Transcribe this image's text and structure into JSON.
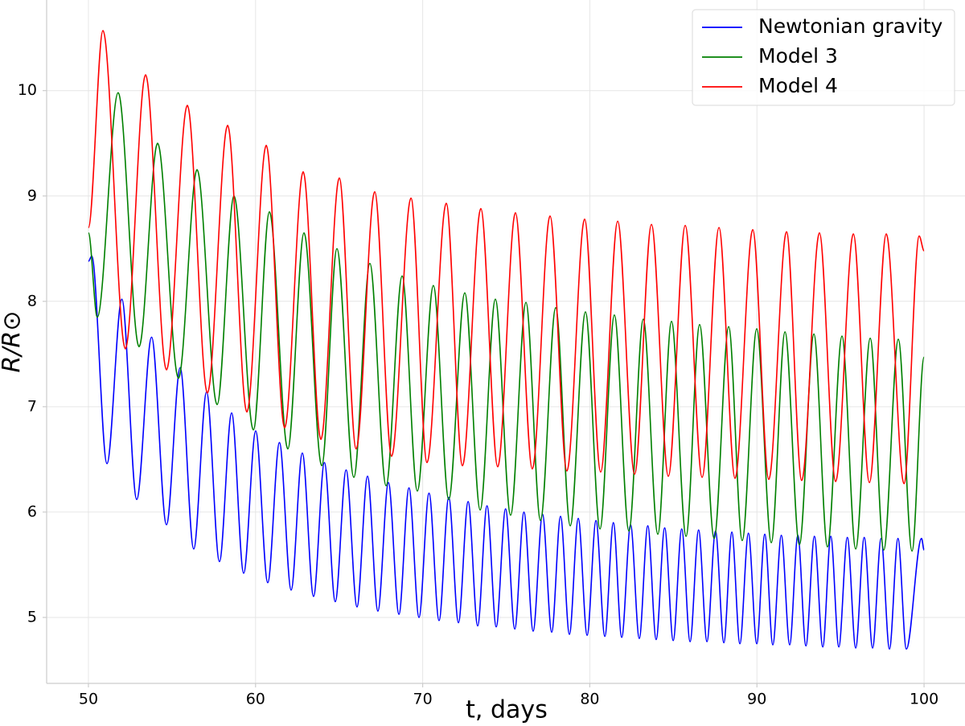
{
  "chart_data": {
    "type": "line",
    "xlabel": "t, days",
    "ylabel": "R/R⊙",
    "xlim": [
      47.5,
      102.45
    ],
    "ylim": [
      4.374,
      10.86
    ],
    "xticks": [
      50,
      60,
      70,
      80,
      90,
      100
    ],
    "yticks": [
      5,
      6,
      7,
      8,
      9,
      10
    ],
    "grid": true,
    "legend": "upper right",
    "series": [
      {
        "name": "Newtonian gravity",
        "color": "#0000ff",
        "x": [
          50,
          50.2,
          51.11,
          52.0,
          52.89,
          53.78,
          54.67,
          55.49,
          56.3,
          57.07,
          57.84,
          58.57,
          59.29,
          60.01,
          60.73,
          61.43,
          62.13,
          62.8,
          63.47,
          64.12,
          64.77,
          65.42,
          66.07,
          66.7,
          67.32,
          67.95,
          68.58,
          69.18,
          69.78,
          70.38,
          70.98,
          71.56,
          72.14,
          72.72,
          73.29,
          73.85,
          74.4,
          74.96,
          75.51,
          76.06,
          76.61,
          77.17,
          77.72,
          78.25,
          78.78,
          79.31,
          79.84,
          80.37,
          80.9,
          81.41,
          81.91,
          82.44,
          82.96,
          83.47,
          83.97,
          84.48,
          84.99,
          85.5,
          86.0,
          86.51,
          87.01,
          87.52,
          88.02,
          88.5,
          88.98,
          89.49,
          89.99,
          90.47,
          90.95,
          91.46,
          91.96,
          92.45,
          92.93,
          93.44,
          93.94,
          94.42,
          94.9,
          95.41,
          95.91,
          96.42,
          96.92,
          97.43,
          97.93,
          98.44,
          98.94,
          99.85,
          100
        ],
        "values": [
          8.38,
          8.43,
          6.46,
          8.02,
          6.12,
          7.66,
          5.88,
          7.37,
          5.65,
          7.14,
          5.53,
          6.94,
          5.42,
          6.77,
          5.33,
          6.66,
          5.26,
          6.56,
          5.2,
          6.47,
          5.15,
          6.4,
          5.1,
          6.34,
          5.06,
          6.28,
          5.03,
          6.23,
          5.0,
          6.18,
          4.97,
          6.14,
          4.95,
          6.1,
          4.92,
          6.06,
          4.91,
          6.03,
          4.89,
          6.0,
          4.87,
          5.98,
          4.86,
          5.96,
          4.84,
          5.94,
          4.83,
          5.92,
          4.82,
          5.9,
          4.81,
          5.88,
          4.8,
          5.87,
          4.79,
          5.85,
          4.78,
          5.84,
          4.77,
          5.83,
          4.77,
          5.82,
          4.76,
          5.81,
          4.75,
          5.8,
          4.75,
          5.79,
          4.74,
          5.78,
          4.74,
          5.78,
          4.73,
          5.77,
          4.72,
          5.77,
          4.72,
          5.76,
          4.71,
          5.76,
          4.71,
          5.75,
          4.7,
          5.75,
          4.7,
          5.75,
          5.64
        ]
      },
      {
        "name": "Model 3",
        "color": "#008000",
        "x": [
          50,
          50.53,
          51.78,
          53.03,
          54.14,
          55.39,
          56.5,
          57.7,
          58.71,
          59.87,
          60.83,
          61.93,
          62.9,
          63.96,
          64.87,
          65.88,
          66.84,
          67.81,
          68.77,
          69.68,
          70.64,
          71.56,
          72.52,
          73.44,
          74.35,
          75.26,
          76.18,
          77.05,
          77.96,
          78.83,
          79.74,
          80.61,
          81.47,
          82.34,
          83.2,
          84.07,
          84.89,
          85.76,
          86.57,
          87.44,
          88.31,
          89.12,
          89.99,
          90.86,
          91.68,
          92.54,
          93.41,
          94.22,
          95.09,
          95.91,
          96.78,
          97.59,
          98.46,
          99.28,
          100
        ],
        "values": [
          8.65,
          7.85,
          9.98,
          7.57,
          9.5,
          7.27,
          9.25,
          7.02,
          9.0,
          6.78,
          8.85,
          6.6,
          8.65,
          6.44,
          8.5,
          6.33,
          8.36,
          6.25,
          8.24,
          6.2,
          8.15,
          6.12,
          8.08,
          6.02,
          8.02,
          5.97,
          7.99,
          5.92,
          7.94,
          5.87,
          7.9,
          5.84,
          7.87,
          5.82,
          7.83,
          5.79,
          7.81,
          5.77,
          7.78,
          5.75,
          7.76,
          5.73,
          7.74,
          5.71,
          7.71,
          5.69,
          7.69,
          5.67,
          7.67,
          5.65,
          7.65,
          5.64,
          7.64,
          5.63,
          7.47
        ]
      },
      {
        "name": "Model 4",
        "color": "#ff0000",
        "x": [
          50,
          50.87,
          52.21,
          53.42,
          54.67,
          55.92,
          57.12,
          58.33,
          59.48,
          60.64,
          61.74,
          62.85,
          63.91,
          65.01,
          66.02,
          67.13,
          68.14,
          69.3,
          70.26,
          71.41,
          72.38,
          73.48,
          74.49,
          75.55,
          76.56,
          77.62,
          78.63,
          79.69,
          80.65,
          81.67,
          82.68,
          83.69,
          84.7,
          85.71,
          86.72,
          87.73,
          88.69,
          89.75,
          90.71,
          91.77,
          92.68,
          93.74,
          94.71,
          95.77,
          96.73,
          97.74,
          98.8,
          99.71,
          100
        ],
        "values": [
          8.7,
          10.57,
          7.55,
          10.15,
          7.35,
          9.86,
          7.13,
          9.67,
          6.95,
          9.48,
          6.8,
          9.23,
          6.69,
          9.17,
          6.6,
          9.04,
          6.53,
          8.98,
          6.47,
          8.93,
          6.44,
          8.88,
          6.43,
          8.84,
          6.41,
          8.81,
          6.39,
          8.78,
          6.38,
          8.76,
          6.36,
          8.73,
          6.34,
          8.72,
          6.33,
          8.7,
          6.32,
          8.68,
          6.31,
          8.66,
          6.3,
          8.65,
          6.29,
          8.64,
          6.28,
          8.64,
          6.27,
          8.62,
          8.48
        ]
      }
    ]
  }
}
